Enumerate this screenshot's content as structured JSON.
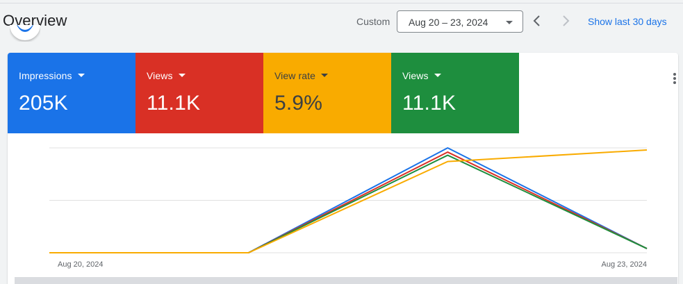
{
  "header": {
    "title": "Overview",
    "custom_label": "Custom",
    "date_range": "Aug 20 – 23, 2024",
    "prev_icon": "chevron-left-icon",
    "next_icon": "chevron-right-icon",
    "show_last_label": "Show last 30 days"
  },
  "metrics": [
    {
      "label": "Impressions",
      "value": "205K",
      "color": "#1a73e8"
    },
    {
      "label": "Views",
      "value": "11.1K",
      "color": "#d93025"
    },
    {
      "label": "View rate",
      "value": "5.9%",
      "color": "#f9ab00"
    },
    {
      "label": "Views",
      "value": "11.1K",
      "color": "#1e8e3e"
    }
  ],
  "chart_data": {
    "type": "line",
    "x": [
      "Aug 20, 2024",
      "Aug 21, 2024",
      "Aug 22, 2024",
      "Aug 23, 2024"
    ],
    "x_tick_labels": [
      "Aug 20, 2024",
      "Aug 23, 2024"
    ],
    "normalized": true,
    "ylim": [
      0,
      1
    ],
    "grid": true,
    "series": [
      {
        "color": "#1a73e8",
        "values": [
          0,
          0,
          1.0,
          0.04
        ]
      },
      {
        "color": "#d93025",
        "values": [
          0,
          0,
          0.96,
          0.04
        ]
      },
      {
        "color": "#1e8e3e",
        "values": [
          0,
          0,
          0.93,
          0.04
        ]
      },
      {
        "color": "#f9ab00",
        "values": [
          0,
          0,
          0.87,
          0.98
        ]
      }
    ]
  }
}
